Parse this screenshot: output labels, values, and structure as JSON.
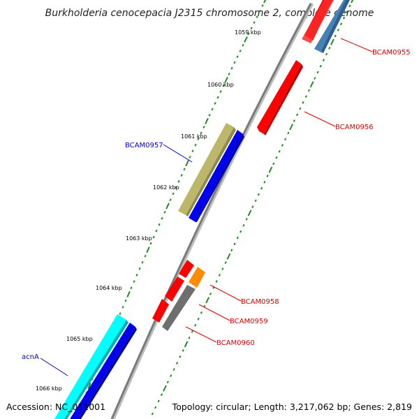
{
  "title": "Burkholderia cenocepacia J2315 chromosome 2, complete genome",
  "footer": {
    "accession": "Accession: NC_011001",
    "summary": "Topology: circular; Length: 3,217,062 bp; Genes: 2,819"
  },
  "scale_labels": [
    "1059 kbp",
    "1060 kbp",
    "1061 kbp",
    "1062 kbp",
    "1063 kbp",
    "1064 kbp",
    "1065 kbp",
    "1066 kbp"
  ],
  "gene_labels": [
    {
      "text": "BCAM0955",
      "color": "#e00000"
    },
    {
      "text": "BCAM0956",
      "color": "#e00000"
    },
    {
      "text": "BCAM0957",
      "color": "#0000cc"
    },
    {
      "text": "BCAM0958",
      "color": "#e00000"
    },
    {
      "text": "BCAM0959",
      "color": "#e00000"
    },
    {
      "text": "BCAM0960",
      "color": "#e00000"
    },
    {
      "text": "acnA",
      "color": "#0000cc"
    }
  ],
  "colors": {
    "backbone": "#7a7a7a",
    "tick": "#228b22",
    "red": "#ff0000",
    "blue": "#0000ee",
    "steelblue": "#4682b4",
    "khaki": "#bdb76b",
    "orange": "#ff8c00",
    "gray": "#6e6e6e",
    "cyan": "#00ffff"
  }
}
